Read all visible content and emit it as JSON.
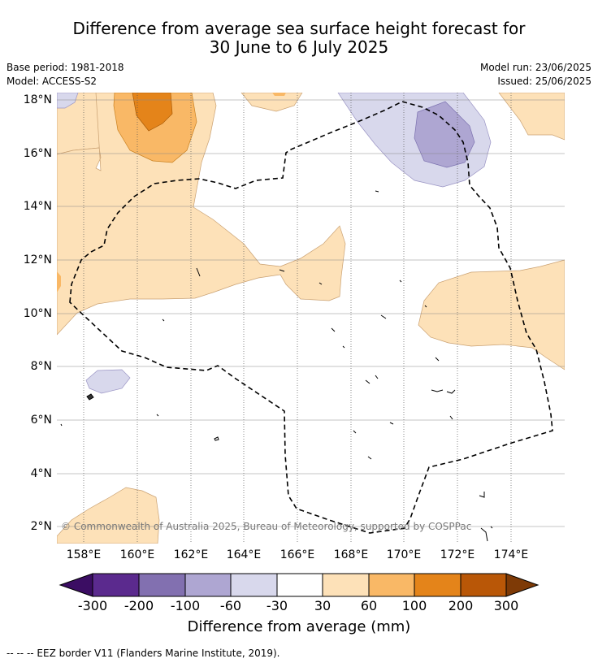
{
  "title": {
    "line1": "Difference from average sea surface height forecast for",
    "line2": "30 June to 6 July 2025"
  },
  "meta": {
    "base_period": "Base period: 1981-2018",
    "model": "Model: ACCESS-S2",
    "model_run": "Model run: 23/06/2025",
    "issued": "Issued: 25/06/2025"
  },
  "axes": {
    "lat_labels": [
      "18°N",
      "16°N",
      "14°N",
      "12°N",
      "10°N",
      "8°N",
      "6°N",
      "4°N",
      "2°N"
    ],
    "lon_labels": [
      "158°E",
      "160°E",
      "162°E",
      "164°E",
      "166°E",
      "168°E",
      "170°E",
      "172°E",
      "174°E"
    ],
    "lat_values": [
      18,
      16,
      14,
      12,
      10,
      8,
      6,
      4,
      2
    ],
    "lon_values": [
      158,
      160,
      162,
      164,
      166,
      168,
      170,
      172,
      174
    ],
    "lon_range": [
      157,
      176
    ],
    "lat_range": [
      1.4,
      18.3
    ],
    "grid": true
  },
  "copyright": "© Commonwealth of Australia 2025, Bureau of Meteorology, supported by COSPPac",
  "colorbar": {
    "title": "Difference from average (mm)",
    "labels": [
      "-300",
      "-200",
      "-100",
      "-60",
      "-30",
      "30",
      "60",
      "100",
      "200",
      "300"
    ],
    "colors": {
      "below_min": "#3b0d63",
      "bins": [
        "#5b2a8e",
        "#8270b0",
        "#aea6d2",
        "#d8d8ec",
        "#ffffff",
        "#fde1b8",
        "#f9b866",
        "#e4841a",
        "#b95707"
      ],
      "above_max": "#7e3a06"
    }
  },
  "footer": "-- -- -- EEZ border V11 (Flanders Marine Institute, 2019)."
}
